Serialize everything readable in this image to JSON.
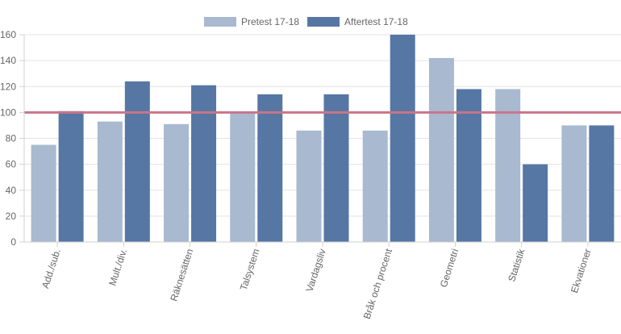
{
  "chart_data": {
    "type": "bar",
    "title": "",
    "xlabel": "",
    "ylabel": "",
    "categories": [
      "Add./sub.",
      "Mult./div.",
      "Räknesätten",
      "Talsystem",
      "Vardagsliv",
      "Bråk och procent",
      "Geometri",
      "Statistik",
      "Ekvationer"
    ],
    "series": [
      {
        "name": "Pretest 17-18",
        "color": "#a8b9d0",
        "values": [
          75,
          93,
          91,
          100,
          86,
          86,
          142,
          118,
          90
        ]
      },
      {
        "name": "Aftertest 17-18",
        "color": "#5677a4",
        "values": [
          101,
          124,
          121,
          114,
          114,
          160,
          118,
          60,
          90
        ]
      }
    ],
    "reference_line": {
      "value": 100,
      "color": "#c9758a"
    },
    "ylim": [
      0,
      160
    ],
    "yticks": [
      0,
      20,
      40,
      60,
      80,
      100,
      120,
      140,
      160
    ],
    "grid": true,
    "legend_position": "top-center"
  }
}
